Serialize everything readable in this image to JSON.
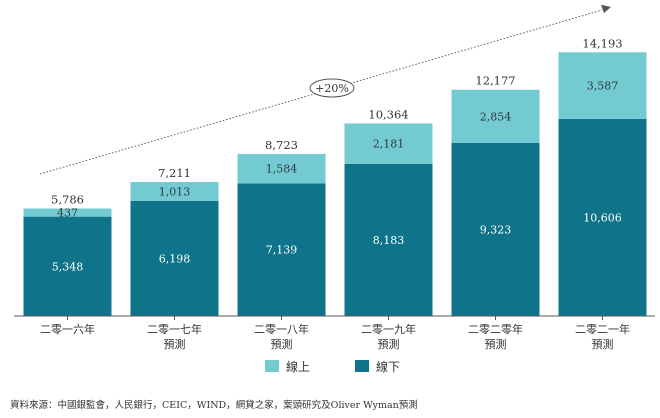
{
  "chart_data": {
    "type": "bar",
    "stacked": true,
    "categories": [
      [
        "二零一六年"
      ],
      [
        "二零一七年",
        "預測"
      ],
      [
        "二零一八年",
        "預測"
      ],
      [
        "二零一九年",
        "預測"
      ],
      [
        "二零二零年",
        "預測"
      ],
      [
        "二零二一年",
        "預測"
      ]
    ],
    "series": [
      {
        "name": "線下",
        "values": [
          5348,
          6198,
          7139,
          8183,
          9323,
          10606
        ],
        "color": "#0f7489"
      },
      {
        "name": "線上",
        "values": [
          437,
          1013,
          1584,
          2181,
          2854,
          3587
        ],
        "color": "#73cbd1"
      }
    ],
    "totals": [
      5786,
      7211,
      8723,
      10364,
      12177,
      14193
    ],
    "ylim": [
      0,
      15500
    ],
    "grid": false,
    "legend": "bottom",
    "annotation": {
      "label": "+20%",
      "type": "growth-arrow"
    },
    "source": "資料來源：中國銀監會，人民銀行，CEIC，WIND，網貸之家，案頭研究及Oliver Wyman預測"
  }
}
